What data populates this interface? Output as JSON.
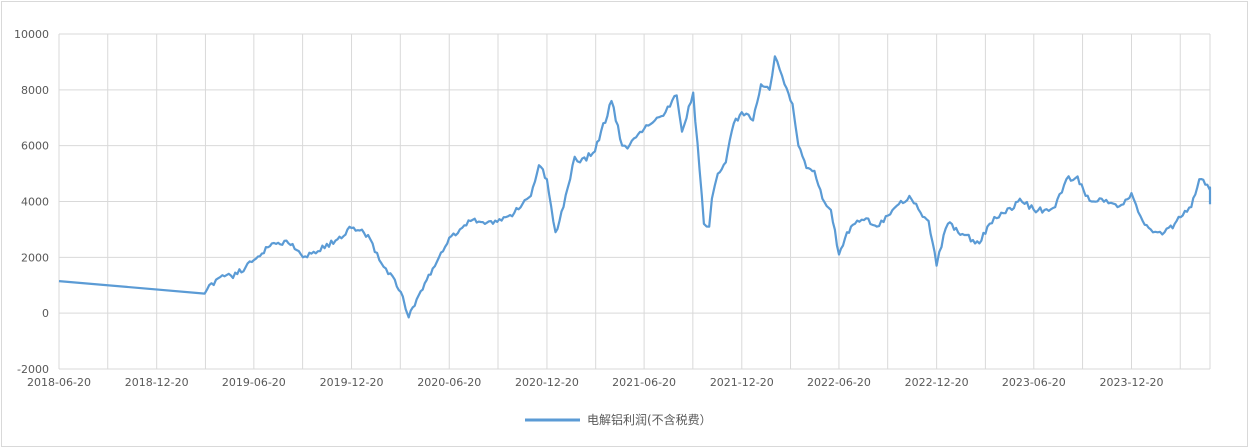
{
  "chart_data": {
    "type": "line",
    "title": "",
    "xlabel": "",
    "ylabel": "",
    "ylim": [
      -2000,
      10000
    ],
    "y_ticks": [
      -2000,
      0,
      2000,
      4000,
      6000,
      8000,
      10000
    ],
    "x_ticks": [
      "2018-06-20",
      "2018-12-20",
      "2019-06-20",
      "2019-12-20",
      "2020-06-20",
      "2020-12-20",
      "2021-06-20",
      "2021-12-20",
      "2022-06-20",
      "2022-12-20",
      "2023-06-20",
      "2023-12-20"
    ],
    "grid": "vertical and horizontal",
    "legend_position": "bottom-center",
    "series": [
      {
        "name": "电解铝利润(不含税费）",
        "color": "#5b9bd5",
        "x": [
          "2018-06-20",
          "2019-03-20",
          "2019-04-10",
          "2019-05-20",
          "2019-06-20",
          "2019-07-20",
          "2019-08-20",
          "2019-09-20",
          "2019-10-10",
          "2019-11-20",
          "2019-12-20",
          "2020-01-20",
          "2020-02-10",
          "2020-03-10",
          "2020-03-25",
          "2020-04-05",
          "2020-04-20",
          "2020-05-20",
          "2020-06-20",
          "2020-07-10",
          "2020-07-30",
          "2020-09-10",
          "2020-10-20",
          "2020-11-20",
          "2020-12-05",
          "2020-12-20",
          "2021-01-05",
          "2021-01-20",
          "2021-02-10",
          "2021-02-20",
          "2021-03-20",
          "2021-04-20",
          "2021-05-10",
          "2021-05-20",
          "2021-06-05",
          "2021-06-20",
          "2021-07-10",
          "2021-07-30",
          "2021-08-20",
          "2021-08-30",
          "2021-09-20",
          "2021-10-10",
          "2021-10-20",
          "2021-10-25",
          "2021-11-05",
          "2021-11-20",
          "2021-12-05",
          "2021-12-20",
          "2022-01-10",
          "2022-01-25",
          "2022-02-10",
          "2022-02-20",
          "2022-03-10",
          "2022-03-25",
          "2022-04-05",
          "2022-04-20",
          "2022-05-05",
          "2022-05-20",
          "2022-06-05",
          "2022-06-20",
          "2022-07-05",
          "2022-07-20",
          "2022-08-10",
          "2022-08-30",
          "2022-09-20",
          "2022-10-10",
          "2022-10-30",
          "2022-11-20",
          "2022-12-05",
          "2022-12-20",
          "2022-12-25",
          "2023-01-10",
          "2023-02-10",
          "2023-03-10",
          "2023-03-25",
          "2023-04-20",
          "2023-05-10",
          "2023-05-25",
          "2023-06-20",
          "2023-07-10",
          "2023-07-30",
          "2023-08-20",
          "2023-09-10",
          "2023-09-25",
          "2023-10-10",
          "2023-10-25",
          "2023-11-20",
          "2023-12-05",
          "2023-12-20",
          "2024-01-10",
          "2024-01-25",
          "2024-02-20",
          "2024-03-10",
          "2024-03-25",
          "2024-04-10",
          "2024-04-25",
          "2024-05-10",
          "2024-05-25",
          "2024-06-10",
          "2024-06-25"
        ],
        "values": [
          1150,
          700,
          1200,
          1400,
          1900,
          2400,
          2600,
          2000,
          2200,
          2600,
          3050,
          2800,
          1900,
          1200,
          600,
          -150,
          500,
          1600,
          2700,
          3000,
          3300,
          3200,
          3600,
          4200,
          5300,
          4800,
          2900,
          3800,
          5600,
          5400,
          5800,
          7600,
          6000,
          5900,
          6300,
          6600,
          6900,
          7200,
          7800,
          6500,
          7900,
          3200,
          3100,
          4100,
          5000,
          5400,
          6800,
          7200,
          6900,
          8200,
          8000,
          9200,
          8200,
          7500,
          6000,
          5200,
          5100,
          4100,
          3700,
          2100,
          2900,
          3200,
          3400,
          3100,
          3500,
          3900,
          4200,
          3600,
          3300,
          1700,
          2200,
          3200,
          2800,
          2500,
          3100,
          3600,
          3700,
          4100,
          3700,
          3700,
          3800,
          4800,
          4900,
          4200,
          4000,
          4100,
          3900,
          3900,
          4300,
          3300,
          3000,
          2900,
          3200,
          3500,
          3800,
          4800,
          4600,
          4400,
          4500,
          3900
        ]
      }
    ]
  }
}
